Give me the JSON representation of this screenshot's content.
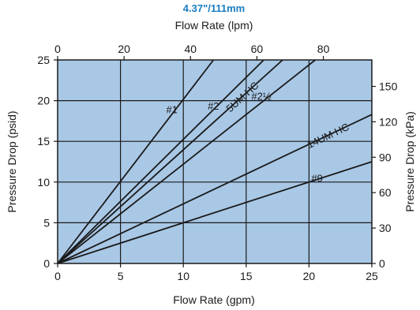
{
  "chart_data": {
    "type": "line",
    "title": "4.37\"/111mm",
    "xlabel": "Flow Rate  (gpm)",
    "x2label": "Flow Rate  (lpm)",
    "ylabel": "Pressure Drop  (psid)",
    "y2label": "Pressure Drop  (kPa)",
    "xlim": [
      0,
      25
    ],
    "ylim": [
      0,
      25
    ],
    "x2lim": [
      0,
      94.6
    ],
    "y2lim": [
      0,
      172.4
    ],
    "xticks": [
      0,
      5,
      10,
      15,
      20,
      25
    ],
    "yticks": [
      0,
      5,
      10,
      15,
      20,
      25
    ],
    "x2ticks": [
      0,
      20,
      40,
      60,
      80
    ],
    "y2ticks": [
      0,
      30,
      60,
      90,
      120,
      150
    ],
    "grid": true,
    "colors": {
      "plot_bg": "#a9c8e6",
      "line": "#1a1a1a",
      "title": "#1a7cc1"
    },
    "series": [
      {
        "name": "#1",
        "x": [
          0,
          12.4
        ],
        "y": [
          0,
          25
        ]
      },
      {
        "name": "#2",
        "x": [
          0,
          16.4
        ],
        "y": [
          0,
          25
        ]
      },
      {
        "name": "5UM HC",
        "x": [
          0,
          17.9
        ],
        "y": [
          0,
          25
        ]
      },
      {
        "name": "#2½",
        "x": [
          0,
          20.5
        ],
        "y": [
          0,
          25
        ]
      },
      {
        "name": "14UM HC",
        "x": [
          0,
          25
        ],
        "y": [
          0,
          18.3
        ]
      },
      {
        "name": "#9",
        "x": [
          0,
          25
        ],
        "y": [
          0,
          12.5
        ]
      }
    ]
  }
}
